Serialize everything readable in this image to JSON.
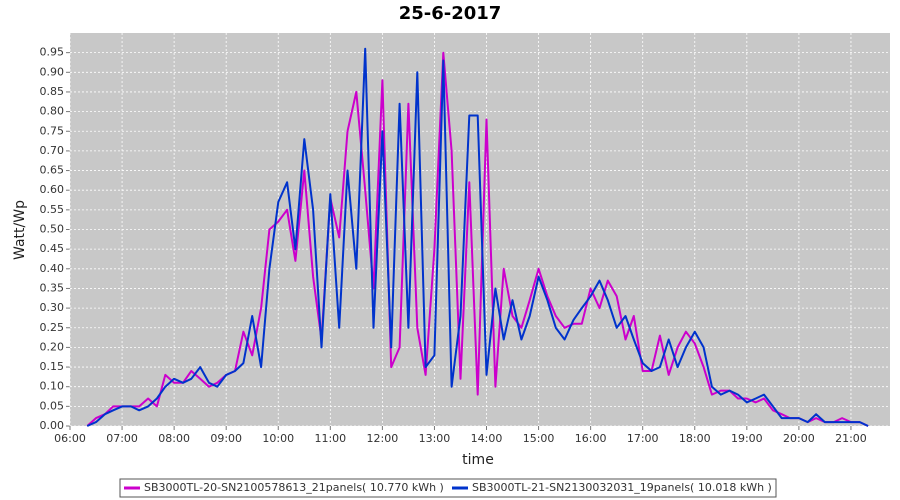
{
  "chart_data": {
    "type": "line",
    "title": "25-6-2017",
    "x_label": "time",
    "y_label": "Watt/Wp",
    "x": [
      6.33,
      6.5,
      6.67,
      6.83,
      7,
      7.17,
      7.33,
      7.5,
      7.67,
      7.83,
      8,
      8.17,
      8.33,
      8.5,
      8.67,
      8.83,
      9,
      9.17,
      9.33,
      9.5,
      9.67,
      9.83,
      10,
      10.17,
      10.33,
      10.5,
      10.67,
      10.83,
      11,
      11.17,
      11.33,
      11.5,
      11.67,
      11.83,
      12,
      12.17,
      12.33,
      12.5,
      12.67,
      12.83,
      13,
      13.17,
      13.33,
      13.5,
      13.67,
      13.83,
      14,
      14.17,
      14.33,
      14.5,
      14.67,
      14.83,
      15,
      15.17,
      15.33,
      15.5,
      15.67,
      15.83,
      16,
      16.17,
      16.33,
      16.5,
      16.67,
      16.83,
      17,
      17.17,
      17.33,
      17.5,
      17.67,
      17.83,
      18,
      18.17,
      18.33,
      18.5,
      18.67,
      18.83,
      19,
      19.17,
      19.33,
      19.5,
      19.67,
      19.83,
      20,
      20.17,
      20.33,
      20.5,
      20.67,
      20.83,
      21,
      21.17,
      21.33
    ],
    "series": [
      {
        "name": "SB3000TL-20-SN2100578613_21panels( 10.770 kWh )",
        "color": "#cc00cc",
        "values": [
          0,
          0.02,
          0.03,
          0.05,
          0.05,
          0.05,
          0.05,
          0.07,
          0.05,
          0.13,
          0.11,
          0.11,
          0.14,
          0.12,
          0.1,
          0.11,
          0.13,
          0.14,
          0.24,
          0.18,
          0.3,
          0.5,
          0.52,
          0.55,
          0.42,
          0.65,
          0.38,
          0.22,
          0.58,
          0.48,
          0.75,
          0.85,
          0.6,
          0.35,
          0.88,
          0.15,
          0.2,
          0.82,
          0.25,
          0.13,
          0.45,
          0.95,
          0.7,
          0.12,
          0.62,
          0.08,
          0.78,
          0.1,
          0.4,
          0.28,
          0.25,
          0.32,
          0.4,
          0.33,
          0.28,
          0.25,
          0.26,
          0.26,
          0.35,
          0.3,
          0.37,
          0.33,
          0.22,
          0.28,
          0.14,
          0.14,
          0.23,
          0.13,
          0.2,
          0.24,
          0.21,
          0.15,
          0.08,
          0.09,
          0.09,
          0.07,
          0.07,
          0.06,
          0.07,
          0.04,
          0.03,
          0.02,
          0.02,
          0.01,
          0.02,
          0.01,
          0.01,
          0.02,
          0.01,
          0.01,
          0
        ]
      },
      {
        "name": "SB3000TL-21-SN2130032031_19panels( 10.018 kWh )",
        "color": "#0033cc",
        "values": [
          0,
          0.01,
          0.03,
          0.04,
          0.05,
          0.05,
          0.04,
          0.05,
          0.07,
          0.1,
          0.12,
          0.11,
          0.12,
          0.15,
          0.11,
          0.1,
          0.13,
          0.14,
          0.16,
          0.28,
          0.15,
          0.4,
          0.57,
          0.62,
          0.45,
          0.73,
          0.55,
          0.2,
          0.59,
          0.25,
          0.65,
          0.4,
          0.96,
          0.25,
          0.75,
          0.2,
          0.82,
          0.25,
          0.9,
          0.15,
          0.18,
          0.93,
          0.1,
          0.28,
          0.79,
          0.79,
          0.13,
          0.35,
          0.22,
          0.32,
          0.22,
          0.28,
          0.38,
          0.32,
          0.25,
          0.22,
          0.27,
          0.3,
          0.33,
          0.37,
          0.32,
          0.25,
          0.28,
          0.22,
          0.16,
          0.14,
          0.15,
          0.22,
          0.15,
          0.2,
          0.24,
          0.2,
          0.1,
          0.08,
          0.09,
          0.08,
          0.06,
          0.07,
          0.08,
          0.05,
          0.02,
          0.02,
          0.02,
          0.01,
          0.03,
          0.01,
          0.01,
          0.01,
          0.01,
          0.01,
          0
        ]
      }
    ],
    "xlim": [
      6,
      21.75
    ],
    "xticks": [
      {
        "value": 6,
        "label": "06:00"
      },
      {
        "value": 7,
        "label": "07:00"
      },
      {
        "value": 8,
        "label": "08:00"
      },
      {
        "value": 9,
        "label": "09:00"
      },
      {
        "value": 10,
        "label": "10:00"
      },
      {
        "value": 11,
        "label": "11:00"
      },
      {
        "value": 12,
        "label": "12:00"
      },
      {
        "value": 13,
        "label": "13:00"
      },
      {
        "value": 14,
        "label": "14:00"
      },
      {
        "value": 15,
        "label": "15:00"
      },
      {
        "value": 16,
        "label": "16:00"
      },
      {
        "value": 17,
        "label": "17:00"
      },
      {
        "value": 18,
        "label": "18:00"
      },
      {
        "value": 19,
        "label": "19:00"
      },
      {
        "value": 20,
        "label": "20:00"
      },
      {
        "value": 21,
        "label": "21:00"
      }
    ],
    "ylim": [
      0,
      1.0
    ],
    "yticks": [
      {
        "value": 0,
        "label": "0.00"
      },
      0.05,
      {
        "value": 0.1,
        "label": "0.10"
      },
      0.15,
      {
        "value": 0.2,
        "label": "0.20"
      },
      0.25,
      {
        "value": 0.3,
        "label": "0.30"
      },
      0.35,
      {
        "value": 0.4,
        "label": "0.40"
      },
      0.45,
      {
        "value": 0.5,
        "label": "0.50"
      },
      0.55,
      {
        "value": 0.6,
        "label": "0.60"
      },
      0.65,
      {
        "value": 0.7,
        "label": "0.70"
      },
      0.75,
      {
        "value": 0.8,
        "label": "0.80"
      },
      0.85,
      {
        "value": 0.9,
        "label": "0.90"
      },
      0.95
    ],
    "grid": true
  }
}
